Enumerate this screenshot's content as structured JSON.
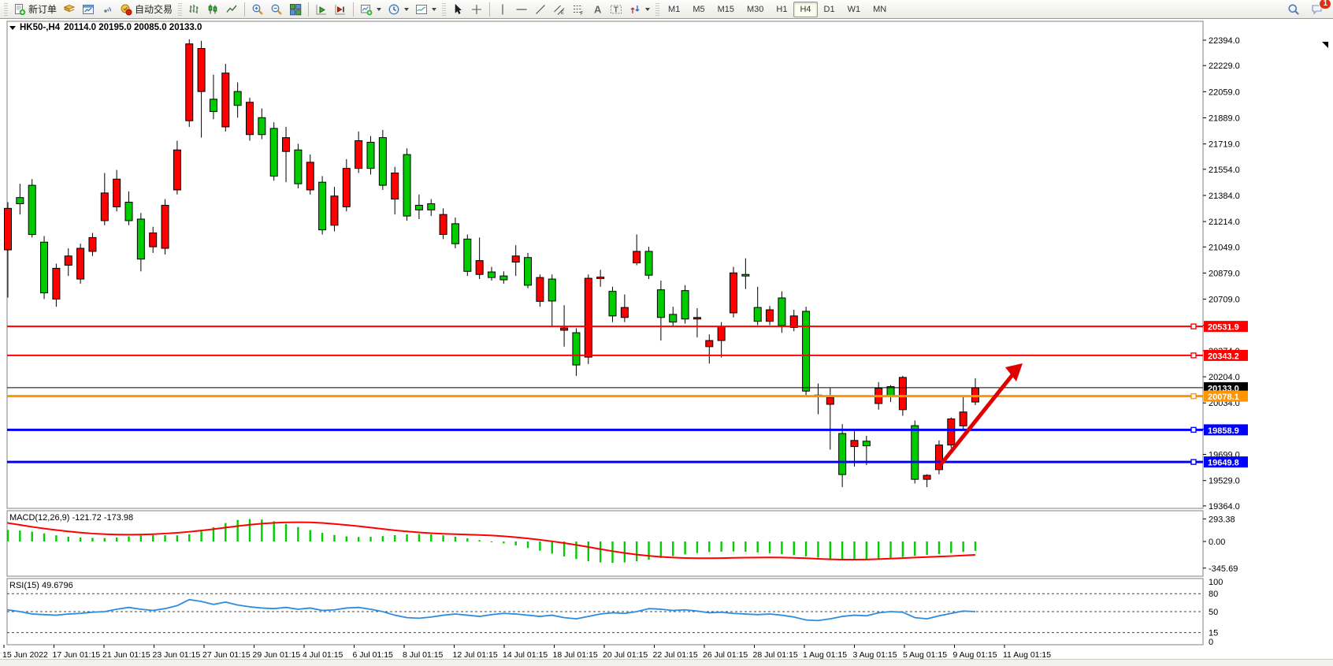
{
  "toolbar": {
    "new_order_label": "新订单",
    "autotrading_label": "自动交易",
    "left_icons": [
      "new-order-icon",
      "market-watch-icon",
      "chart-window-icon",
      "signal-icon",
      "autotrading-icon"
    ],
    "chart_type_icons": [
      "bars-chart-icon",
      "candles-chart-icon",
      "line-chart-icon"
    ],
    "zoom_icons": [
      "zoom-in-icon",
      "zoom-out-icon",
      "tile-windows-icon"
    ],
    "scroll_icons": [
      "autoscroll-icon",
      "chart-shift-icon"
    ],
    "object_icons": [
      "new-chart-icon",
      "periods-icon",
      "templates-icon"
    ],
    "drawing_icons": [
      "cursor-icon",
      "crosshair-icon",
      "vline-icon",
      "hline-icon",
      "trendline-icon",
      "channel-icon",
      "fibonacci-icon",
      "text-icon",
      "label-icon",
      "shapes-icon"
    ],
    "timeframes": [
      "M1",
      "M5",
      "M15",
      "M30",
      "H1",
      "H4",
      "D1",
      "W1",
      "MN"
    ],
    "active_timeframe": "H4",
    "right_icons": [
      "search-icon",
      "chat-icon"
    ],
    "chat_badge": "1"
  },
  "chart": {
    "title": {
      "symbol_period": "HK50-,H4",
      "ohlc": "20114.0 20195.0 20085.0 20133.0"
    },
    "colors": {
      "bull": "#ff0000",
      "bear": "#00cc00",
      "wick": "#000000",
      "level_red": "#ff0000",
      "level_blue": "#0000ff",
      "level_orange": "#ff9500",
      "current_price_line": "#000000",
      "macd_histogram": "#00cc00",
      "macd_signal": "#ff0000",
      "rsi_line": "#2e8ce0",
      "arrow": "#e00000"
    },
    "price_axis_ticks": [
      "22394.0",
      "22229.0",
      "22059.0",
      "21889.0",
      "21719.0",
      "21554.0",
      "21384.0",
      "21214.0",
      "21049.0",
      "20879.0",
      "20709.0",
      "20539.0",
      "20374.0",
      "20204.0",
      "20034.0",
      "19864.0",
      "19699.0",
      "19529.0",
      "19364.0"
    ],
    "levels": [
      {
        "label": "20531.9",
        "value": 20531.9,
        "color": "#ff0000",
        "width": 2
      },
      {
        "label": "20343.2",
        "value": 20343.2,
        "color": "#ff0000",
        "width": 2
      },
      {
        "label": "20133.0",
        "value": 20133.0,
        "color": "#000000",
        "width": 1
      },
      {
        "label": "20078.1",
        "value": 20078.1,
        "color": "#ff9500",
        "width": 3
      },
      {
        "label": "19858.9",
        "value": 19858.9,
        "color": "#0000ff",
        "width": 3
      },
      {
        "label": "19649.8",
        "value": 19649.8,
        "color": "#0000ff",
        "width": 3
      }
    ],
    "date_labels": [
      "15 Jun 2022",
      "17 Jun 01:15",
      "21 Jun 01:15",
      "23 Jun 01:15",
      "27 Jun 01:15",
      "29 Jun 01:15",
      "4 Jul 01:15",
      "6 Jul 01:15",
      "8 Jul 01:15",
      "12 Jul 01:15",
      "14 Jul 01:15",
      "18 Jul 01:15",
      "20 Jul 01:15",
      "22 Jul 01:15",
      "26 Jul 01:15",
      "28 Jul 01:15",
      "1 Aug 01:15",
      "3 Aug 01:15",
      "5 Aug 01:15",
      "9 Aug 01:15",
      "11 Aug 01:15"
    ]
  },
  "chart_data": {
    "type": "candlestick",
    "symbol": "HK50-",
    "timeframe": "H4",
    "current_bar": {
      "open": 20114.0,
      "high": 20195.0,
      "low": 20085.0,
      "close": 20133.0
    },
    "price_range": {
      "min": 19364.0,
      "max": 22394.0
    },
    "candle_fields": [
      "color(r=up,g=down)",
      "high",
      "body_top",
      "body_bottom",
      "low"
    ],
    "candles": [
      [
        "r",
        21340,
        21300,
        21030,
        20720
      ],
      [
        "g",
        21460,
        21370,
        21330,
        21260
      ],
      [
        "g",
        21490,
        21450,
        21130,
        21110
      ],
      [
        "g",
        21120,
        21080,
        20750,
        20710
      ],
      [
        "r",
        20940,
        20910,
        20710,
        20660
      ],
      [
        "r",
        21040,
        20990,
        20930,
        20860
      ],
      [
        "r",
        21070,
        21040,
        20840,
        20810
      ],
      [
        "r",
        21140,
        21110,
        21020,
        20990
      ],
      [
        "r",
        21530,
        21400,
        21220,
        21190
      ],
      [
        "r",
        21550,
        21490,
        21310,
        21280
      ],
      [
        "g",
        21410,
        21340,
        21220,
        21190
      ],
      [
        "g",
        21270,
        21230,
        20970,
        20890
      ],
      [
        "r",
        21180,
        21140,
        21050,
        21010
      ],
      [
        "r",
        21360,
        21320,
        21040,
        21000
      ],
      [
        "r",
        21740,
        21680,
        21420,
        21390
      ],
      [
        "r",
        22400,
        22370,
        21870,
        21830
      ],
      [
        "r",
        22390,
        22340,
        22060,
        21760
      ],
      [
        "g",
        22170,
        22010,
        21930,
        21880
      ],
      [
        "r",
        22240,
        22180,
        21830,
        21800
      ],
      [
        "g",
        22120,
        22060,
        21970,
        21890
      ],
      [
        "r",
        22020,
        21990,
        21780,
        21740
      ],
      [
        "g",
        21950,
        21890,
        21780,
        21750
      ],
      [
        "g",
        21860,
        21820,
        21510,
        21480
      ],
      [
        "r",
        21830,
        21760,
        21670,
        21470
      ],
      [
        "g",
        21720,
        21680,
        21460,
        21430
      ],
      [
        "r",
        21650,
        21600,
        21420,
        21390
      ],
      [
        "g",
        21510,
        21470,
        21160,
        21130
      ],
      [
        "r",
        21440,
        21380,
        21190,
        21150
      ],
      [
        "r",
        21620,
        21560,
        21310,
        21280
      ],
      [
        "r",
        21800,
        21740,
        21560,
        21530
      ],
      [
        "g",
        21770,
        21730,
        21560,
        21520
      ],
      [
        "g",
        21810,
        21760,
        21450,
        21420
      ],
      [
        "r",
        21570,
        21530,
        21360,
        21260
      ],
      [
        "g",
        21690,
        21650,
        21250,
        21220
      ],
      [
        "g",
        21390,
        21320,
        21290,
        21230
      ],
      [
        "g",
        21360,
        21330,
        21290,
        21250
      ],
      [
        "r",
        21300,
        21260,
        21130,
        21100
      ],
      [
        "g",
        21240,
        21200,
        21070,
        21040
      ],
      [
        "g",
        21130,
        21100,
        20890,
        20860
      ],
      [
        "r",
        21110,
        20960,
        20870,
        20840
      ],
      [
        "g",
        20920,
        20886,
        20850,
        20830
      ],
      [
        "g",
        20890,
        20860,
        20835,
        20810
      ],
      [
        "r",
        21060,
        20990,
        20950,
        20860
      ],
      [
        "g",
        21010,
        20980,
        20800,
        20780
      ],
      [
        "r",
        20870,
        20850,
        20695,
        20660
      ],
      [
        "g",
        20870,
        20840,
        20697,
        20530
      ],
      [
        "r",
        20670,
        20522,
        20507,
        20400
      ],
      [
        "g",
        20520,
        20491,
        20281,
        20210
      ],
      [
        "r",
        20870,
        20845,
        20332,
        20287
      ],
      [
        "r",
        20900,
        20853,
        20843,
        20790
      ],
      [
        "g",
        20790,
        20760,
        20600,
        20560
      ],
      [
        "r",
        20740,
        20655,
        20590,
        20560
      ],
      [
        "r",
        21130,
        21020,
        20945,
        20930
      ],
      [
        "g",
        21050,
        21020,
        20865,
        20840
      ],
      [
        "g",
        20830,
        20770,
        20590,
        20440
      ],
      [
        "g",
        20660,
        20610,
        20560,
        20530
      ],
      [
        "g",
        20800,
        20765,
        20580,
        20550
      ],
      [
        "r",
        20650,
        20590,
        20580,
        20460
      ],
      [
        "r",
        20480,
        20440,
        20400,
        20290
      ],
      [
        "r",
        20560,
        20530,
        20440,
        20330
      ],
      [
        "r",
        20920,
        20880,
        20620,
        20590
      ],
      [
        "g",
        20975,
        20870,
        20860,
        20775
      ],
      [
        "g",
        20790,
        20655,
        20565,
        20540
      ],
      [
        "r",
        20665,
        20640,
        20565,
        20540
      ],
      [
        "g",
        20760,
        20717,
        20537,
        20490
      ],
      [
        "r",
        20640,
        20600,
        20525,
        20500
      ],
      [
        "g",
        20660,
        20630,
        20111,
        20080
      ],
      [
        "g",
        20160,
        20085,
        20075,
        19960
      ],
      [
        "r",
        20130,
        20070,
        20025,
        19730
      ],
      [
        "g",
        19896,
        19835,
        19568,
        19486
      ],
      [
        "r",
        19850,
        19790,
        19750,
        19620
      ],
      [
        "g",
        19820,
        19785,
        19755,
        19630
      ],
      [
        "r",
        20170,
        20130,
        20030,
        19990
      ],
      [
        "g",
        20150,
        20140,
        20080,
        20040
      ],
      [
        "r",
        20210,
        20200,
        19990,
        19950
      ],
      [
        "g",
        19920,
        19886,
        19537,
        19510
      ],
      [
        "r",
        19570,
        19563,
        19537,
        19486
      ],
      [
        "r",
        19790,
        19760,
        19600,
        19570
      ],
      [
        "r",
        19940,
        19930,
        19760,
        19740
      ],
      [
        "r",
        20080,
        19975,
        19885,
        19860
      ],
      [
        "r",
        20195,
        20133,
        20040,
        20020
      ]
    ]
  },
  "macd": {
    "label": "MACD(12,26,9) -121.72 -173.98",
    "params": "12,26,9",
    "value": -121.72,
    "signal_value": -173.98,
    "axis_labels": [
      "293.38",
      "0.00",
      "-345.69"
    ],
    "histogram": [
      150,
      142,
      128,
      105,
      80,
      62,
      52,
      46,
      44,
      52,
      66,
      78,
      84,
      82,
      80,
      95,
      130,
      185,
      240,
      280,
      292,
      285,
      262,
      228,
      188,
      148,
      112,
      84,
      66,
      58,
      60,
      70,
      82,
      92,
      96,
      92,
      80,
      62,
      40,
      18,
      -2,
      -25,
      -52,
      -85,
      -120,
      -158,
      -195,
      -228,
      -255,
      -272,
      -278,
      -272,
      -258,
      -238,
      -214,
      -190,
      -168,
      -150,
      -138,
      -132,
      -130,
      -134,
      -142,
      -152,
      -164,
      -178,
      -194,
      -210,
      -224,
      -234,
      -238,
      -236,
      -228,
      -216,
      -202,
      -188,
      -175,
      -163,
      -150,
      -136,
      -122
    ],
    "signal": [
      240,
      215,
      190,
      168,
      148,
      130,
      115,
      103,
      95,
      90,
      88,
      90,
      95,
      103,
      113,
      126,
      142,
      160,
      180,
      200,
      218,
      232,
      242,
      248,
      250,
      248,
      240,
      228,
      214,
      198,
      180,
      162,
      145,
      130,
      118,
      108,
      100,
      95,
      90,
      85,
      78,
      68,
      55,
      40,
      22,
      2,
      -20,
      -45,
      -72,
      -100,
      -126,
      -150,
      -170,
      -187,
      -200,
      -209,
      -215,
      -218,
      -218,
      -216,
      -213,
      -210,
      -208,
      -207,
      -208,
      -212,
      -218,
      -225,
      -231,
      -235,
      -236,
      -234,
      -229,
      -223,
      -216,
      -209,
      -202,
      -196,
      -190,
      -182,
      -174
    ]
  },
  "rsi": {
    "label": "RSI(15) 49.6796",
    "period": 15,
    "value": 49.6796,
    "axis_labels": [
      "100",
      "80",
      "50",
      "15",
      "0"
    ],
    "level_lines": [
      80,
      50,
      15
    ],
    "values": [
      53,
      50,
      46,
      45,
      44,
      46,
      47,
      49,
      50,
      54,
      57,
      54,
      52,
      55,
      60,
      70,
      67,
      62,
      66,
      61,
      58,
      56,
      55,
      57,
      54,
      56,
      52,
      53,
      56,
      57,
      54,
      50,
      44,
      40,
      39,
      41,
      44,
      46,
      44,
      42,
      45,
      47,
      46,
      44,
      42,
      44,
      40,
      38,
      42,
      46,
      48,
      47,
      50,
      55,
      54,
      52,
      53,
      51,
      48,
      49,
      47,
      46,
      45,
      46,
      44,
      41,
      36,
      35,
      38,
      42,
      44,
      43,
      48,
      50,
      49,
      40,
      38,
      43,
      47,
      51,
      50
    ]
  }
}
